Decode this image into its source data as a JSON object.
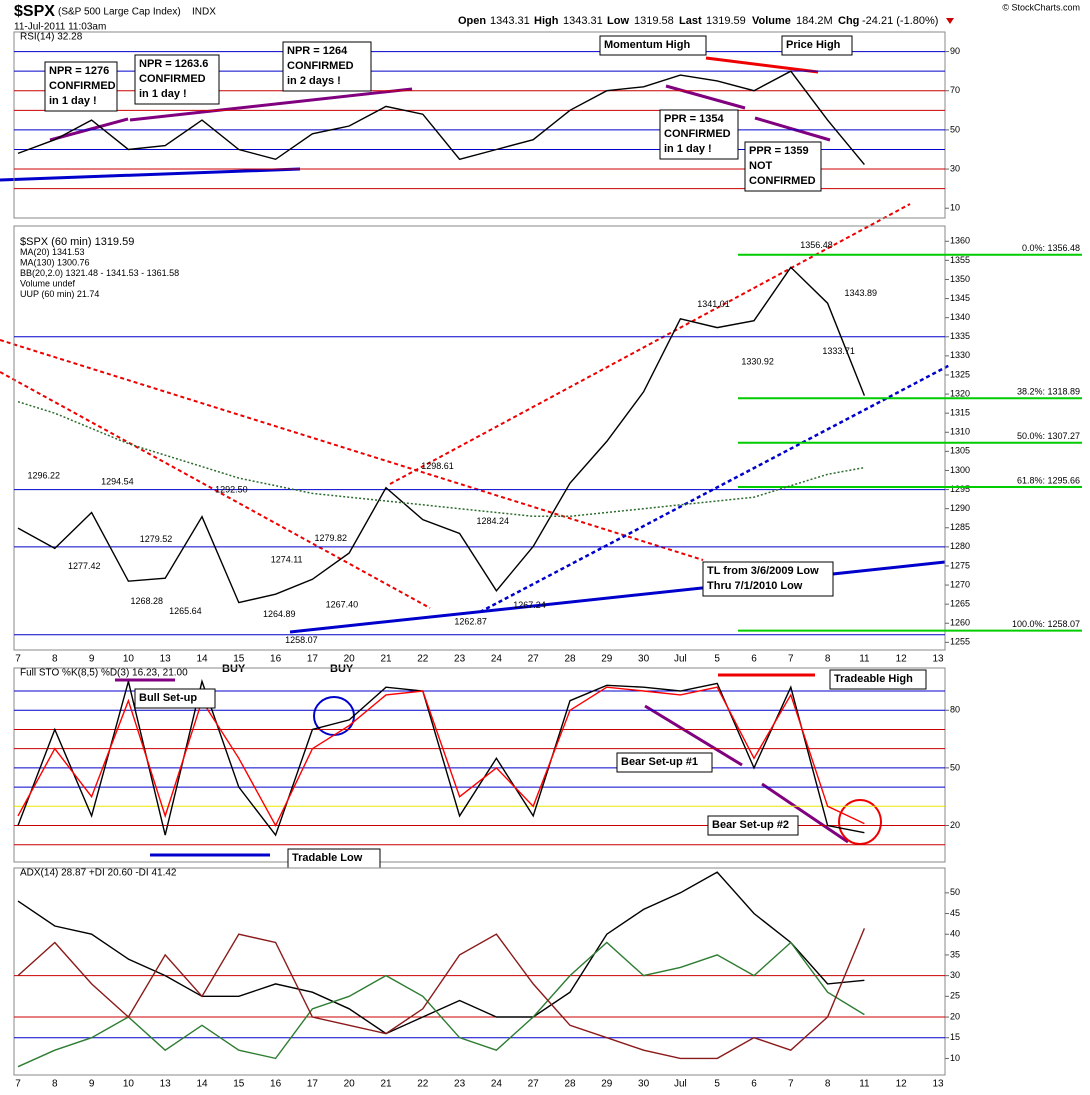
{
  "header": {
    "symbol": "$SPX",
    "name": "(S&P 500 Large Cap Index)",
    "exchange": "INDX",
    "date": "11-Jul-2011 11:03am",
    "open_label": "Open",
    "open": "1343.31",
    "high_label": "High",
    "high": "1343.31",
    "low_label": "Low",
    "low": "1319.58",
    "last_label": "Last",
    "last": "1319.59",
    "volume_label": "Volume",
    "volume": "184.2M",
    "chg_label": "Chg",
    "chg": "-24.21 (-1.80%)",
    "brand": "© StockCharts.com"
  },
  "chart_data": [
    {
      "type": "line",
      "title": "RSI(14) 32.28",
      "ylim": [
        5,
        100
      ],
      "yticks": [
        10,
        30,
        50,
        70,
        90
      ],
      "hlines": [
        {
          "value": 90,
          "color": "#0000cc"
        },
        {
          "value": 80,
          "color": "#0000cc"
        },
        {
          "value": 70,
          "color": "#cc0000"
        },
        {
          "value": 60,
          "color": "#cc0000"
        },
        {
          "value": 50,
          "color": "#0000cc"
        },
        {
          "value": 40,
          "color": "#0000cc"
        },
        {
          "value": 30,
          "color": "#cc0000"
        },
        {
          "value": 20,
          "color": "#cc0000"
        }
      ],
      "series": [
        {
          "color": "#000000",
          "values": [
            38,
            45,
            55,
            40,
            42,
            55,
            40,
            35,
            48,
            52,
            62,
            58,
            35,
            40,
            45,
            60,
            70,
            72,
            78,
            75,
            70,
            80,
            55,
            32.28,
            null,
            null
          ]
        }
      ],
      "annotations": [
        {
          "lines": [
            "NPR = 1276",
            "CONFIRMED",
            "in 1 day !"
          ],
          "color": "#800080"
        },
        {
          "lines": [
            "NPR = 1263.6",
            "CONFIRMED",
            "in 1 day !"
          ],
          "color": "#800080"
        },
        {
          "lines": [
            "NPR = 1264",
            "CONFIRMED",
            "in 2 days !"
          ],
          "color": "#800080"
        },
        {
          "lines": [
            "Momentum High"
          ],
          "color": "#0000cc"
        },
        {
          "lines": [
            "Price High"
          ],
          "color": "#dd0000"
        },
        {
          "lines": [
            "PPR = 1354",
            "CONFIRMED",
            "in 1 day !"
          ],
          "color": "#800080"
        },
        {
          "lines": [
            "PPR = 1359",
            "NOT",
            "CONFIRMED"
          ],
          "color": "#800080"
        }
      ]
    },
    {
      "type": "line",
      "ylim": [
        1253,
        1364
      ],
      "yticks": [
        1255,
        1260,
        1265,
        1270,
        1275,
        1280,
        1285,
        1290,
        1295,
        1300,
        1305,
        1310,
        1315,
        1320,
        1325,
        1330,
        1335,
        1340,
        1345,
        1350,
        1355,
        1360
      ],
      "categories": [
        "7",
        "8",
        "9",
        "10",
        "13",
        "14",
        "15",
        "16",
        "17",
        "20",
        "21",
        "22",
        "23",
        "24",
        "27",
        "28",
        "29",
        "30",
        "Jul",
        "5",
        "6",
        "7",
        "8",
        "11",
        "12",
        "13"
      ],
      "hlines": [
        {
          "value": 1257,
          "color": "#0000cc"
        },
        {
          "value": 1280,
          "color": "#0000cc"
        },
        {
          "value": 1295,
          "color": "#0000cc"
        },
        {
          "value": 1335,
          "color": "#0000cc"
        }
      ],
      "series": [
        {
          "color": "#000000",
          "values": [
            1284.9,
            1279.6,
            1289,
            1271,
            1271.8,
            1287.9,
            1265.4,
            1267.6,
            1271.5,
            1278.4,
            1295.5,
            1287.1,
            1283.5,
            1268.5,
            1280.1,
            1296.7,
            1307.6,
            1320.6,
            1339.7,
            1337.4,
            1339.2,
            1353.2,
            1343.8,
            1319.59,
            null,
            null
          ]
        },
        {
          "color": "#2e6b2e",
          "style": "dotted",
          "values": [
            1318,
            1315,
            1311,
            1307,
            1304,
            1301,
            1298,
            1296,
            1294,
            1293,
            1292,
            1291,
            1290,
            1289,
            1288,
            1288,
            1289,
            1290,
            1291,
            1292,
            1293,
            1296,
            1299,
            1300.76,
            null,
            null
          ]
        }
      ],
      "legend": [
        {
          "label": "$SPX (60 min) 1319.59",
          "color": "#000000"
        },
        {
          "label": "MA(20) 1341.53",
          "color": "#999999"
        },
        {
          "label": "MA(130) 1300.76",
          "color": "#2e6b2e"
        },
        {
          "label": "BB(20,2.0) 1321.48 - 1341.53 - 1361.58",
          "color": "#b8860b"
        },
        {
          "label": "Volume undef",
          "color": "#333333"
        },
        {
          "label": "UUP (60 min) 21.74",
          "color": "#888888"
        }
      ],
      "fib": [
        {
          "value": 1356.48,
          "label": "0.0%: 1356.48"
        },
        {
          "value": 1318.89,
          "label": "38.2%: 1318.89"
        },
        {
          "value": 1307.27,
          "label": "50.0%: 1307.27"
        },
        {
          "value": 1295.66,
          "label": "61.8%: 1295.66"
        },
        {
          "value": 1258.07,
          "label": "100.0%: 1258.07"
        }
      ],
      "fib_color": "#00cc00",
      "peaks": [
        {
          "value": 1296.22,
          "label": "1296.22",
          "x": 0.7,
          "kind": "high"
        },
        {
          "value": 1294.54,
          "label": "1294.54",
          "x": 2.7,
          "kind": "high"
        },
        {
          "value": 1292.5,
          "label": "1292.50",
          "x": 5.8,
          "kind": "high"
        },
        {
          "value": 1279.52,
          "label": "1279.52",
          "x": 3.75,
          "kind": "high"
        },
        {
          "value": 1277.42,
          "label": "1277.42",
          "x": 1.8,
          "kind": "low"
        },
        {
          "value": 1268.28,
          "label": "1268.28",
          "x": 3.5,
          "kind": "low"
        },
        {
          "value": 1265.64,
          "label": "1265.64",
          "x": 4.55,
          "kind": "low"
        },
        {
          "value": 1274.11,
          "label": "1274.11",
          "x": 7.3,
          "kind": "high"
        },
        {
          "value": 1264.89,
          "label": "1264.89",
          "x": 7.1,
          "kind": "low"
        },
        {
          "value": 1258.07,
          "label": "1258.07",
          "x": 7.7,
          "kind": "low"
        },
        {
          "value": 1279.82,
          "label": "1279.82",
          "x": 8.5,
          "kind": "high"
        },
        {
          "value": 1267.4,
          "label": "1267.40",
          "x": 8.8,
          "kind": "low"
        },
        {
          "value": 1298.61,
          "label": "1298.61",
          "x": 11.4,
          "kind": "high"
        },
        {
          "value": 1284.24,
          "label": "1284.24",
          "x": 12.9,
          "kind": "high"
        },
        {
          "value": 1262.87,
          "label": "1262.87",
          "x": 12.3,
          "kind": "low"
        },
        {
          "value": 1267.24,
          "label": "1267.24",
          "x": 13.9,
          "kind": "low"
        },
        {
          "value": 1341.01,
          "label": "1341.01",
          "x": 18.9,
          "kind": "high"
        },
        {
          "value": 1330.92,
          "label": "1330.92",
          "x": 20.1,
          "kind": "low"
        },
        {
          "value": 1356.48,
          "label": "1356.48",
          "x": 21.7,
          "kind": "high"
        },
        {
          "value": 1343.89,
          "label": "1343.89",
          "x": 22.9,
          "kind": "high"
        },
        {
          "value": 1333.71,
          "label": "1333.71",
          "x": 22.3,
          "kind": "low"
        }
      ],
      "annotations": [
        {
          "lines": [
            "TL from 3/6/2009 Low",
            "Thru 7/1/2010 Low"
          ],
          "color": "#000080"
        },
        {
          "lines": [
            "BUY"
          ],
          "color": "#0000cc"
        },
        {
          "lines": [
            "BUY"
          ],
          "color": "#0000cc"
        }
      ]
    },
    {
      "type": "line",
      "title": "Full STO %K(8,5) %D(3) 16.23, 21.00",
      "ylim": [
        1,
        102
      ],
      "yticks": [
        20,
        50,
        80
      ],
      "hlines": [
        {
          "value": 90,
          "color": "#0000cc"
        },
        {
          "value": 80,
          "color": "#0000cc"
        },
        {
          "value": 70,
          "color": "#cc0000"
        },
        {
          "value": 60,
          "color": "#cc0000"
        },
        {
          "value": 50,
          "color": "#0000cc"
        },
        {
          "value": 40,
          "color": "#0000cc"
        },
        {
          "value": 30,
          "color": "#e8e800"
        },
        {
          "value": 20,
          "color": "#cc0000"
        },
        {
          "value": 10,
          "color": "#cc0000"
        }
      ],
      "series": [
        {
          "color": "#000000",
          "values": [
            20,
            70,
            25,
            95,
            15,
            95,
            40,
            15,
            70,
            75,
            92,
            90,
            25,
            55,
            25,
            85,
            93,
            92,
            90,
            94,
            50,
            92,
            20,
            16.23,
            null,
            null
          ]
        },
        {
          "color": "#ff0000",
          "values": [
            25,
            60,
            35,
            85,
            25,
            85,
            55,
            20,
            60,
            72,
            88,
            90,
            35,
            50,
            30,
            80,
            92,
            90,
            88,
            92,
            55,
            88,
            30,
            21.0,
            null,
            null
          ]
        }
      ],
      "annotations": [
        {
          "lines": [
            "Bull Set-up"
          ],
          "color": "#800080"
        },
        {
          "lines": [
            "Tradable Low"
          ],
          "color": "#800080"
        },
        {
          "lines": [
            "Bear Set-up #1"
          ],
          "color": "#800080"
        },
        {
          "lines": [
            "Bear Set-up #2"
          ],
          "color": "#800080"
        },
        {
          "lines": [
            "Tradeable High"
          ],
          "color": "#800080"
        }
      ]
    },
    {
      "type": "line",
      "title": "ADX(14) 28.87 +DI 20.60 -DI 41.42",
      "ylim": [
        6,
        56
      ],
      "yticks": [
        10,
        15,
        20,
        25,
        30,
        35,
        40,
        45,
        50
      ],
      "categories": [
        "7",
        "8",
        "9",
        "10",
        "13",
        "14",
        "15",
        "16",
        "17",
        "20",
        "21",
        "22",
        "23",
        "24",
        "27",
        "28",
        "29",
        "30",
        "Jul",
        "5",
        "6",
        "7",
        "8",
        "11",
        "12",
        "13"
      ],
      "hlines": [
        {
          "value": 30,
          "color": "#cc0000"
        },
        {
          "value": 20,
          "color": "#cc0000"
        },
        {
          "value": 15,
          "color": "#0000cc"
        }
      ],
      "series": [
        {
          "color": "#000000",
          "values": [
            48,
            42,
            40,
            34,
            30,
            25,
            25,
            28,
            26,
            22,
            16,
            20,
            24,
            20,
            20,
            26,
            40,
            46,
            50,
            55,
            45,
            38,
            28,
            28.87,
            null,
            null
          ]
        },
        {
          "color": "#2e7d32",
          "values": [
            8,
            12,
            15,
            20,
            12,
            18,
            12,
            10,
            22,
            25,
            30,
            25,
            15,
            12,
            20,
            30,
            38,
            30,
            32,
            35,
            30,
            38,
            26,
            20.6,
            null,
            null
          ]
        },
        {
          "color": "#8b1a1a",
          "values": [
            30,
            38,
            28,
            20,
            35,
            25,
            40,
            38,
            20,
            18,
            16,
            22,
            35,
            40,
            28,
            18,
            15,
            12,
            10,
            10,
            15,
            12,
            20,
            41.42,
            null,
            null
          ]
        }
      ]
    }
  ]
}
